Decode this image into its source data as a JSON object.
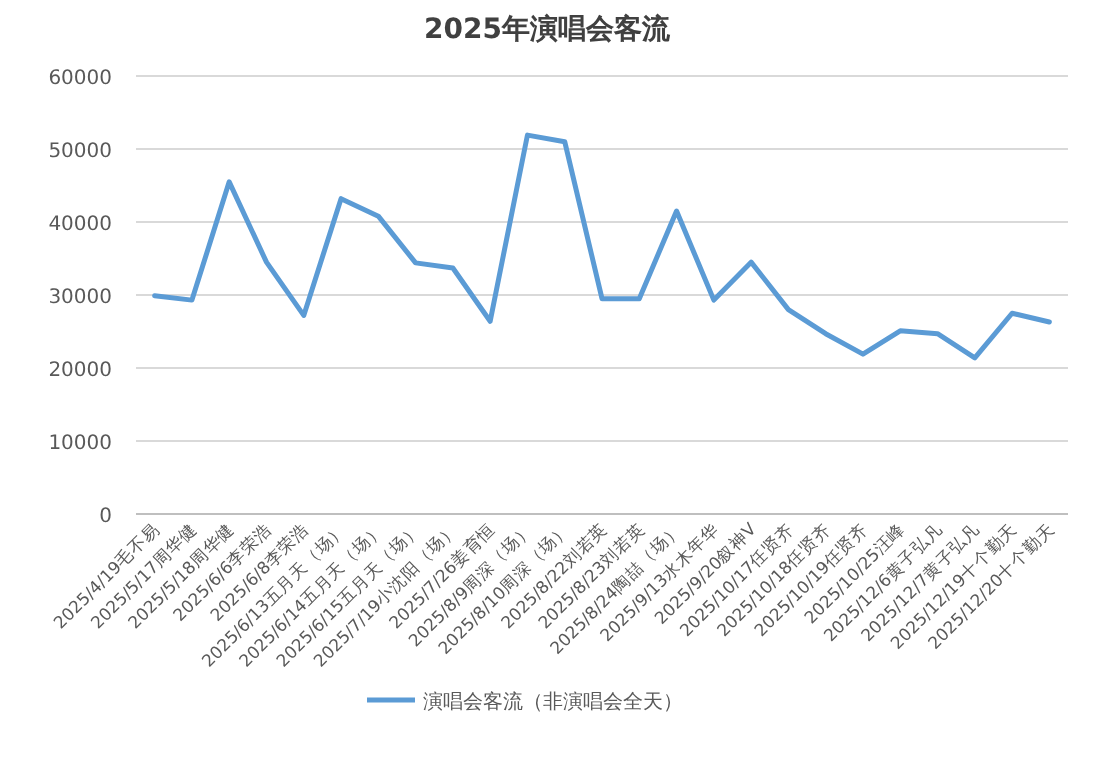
{
  "chart_data": {
    "type": "line",
    "title": "2025年演唱会客流",
    "categories": [
      "2025/4/19毛不易",
      "2025/5/17周华健",
      "2025/5/18周华健",
      "2025/6/6李荣浩",
      "2025/6/8李荣浩",
      "2025/6/13五月天（场）",
      "2025/6/14五月天（场）",
      "2025/6/15五月天（场）",
      "2025/7/19小沈阳（场）",
      "2025/7/26姜育恒",
      "2025/8/9周深（场）",
      "2025/8/10周深（场）",
      "2025/8/22刘若英",
      "2025/8/23刘若英",
      "2025/8/24陶喆（场）",
      "2025/9/13水木年华",
      "2025/9/20叙神V",
      "2025/10/17任贤齐",
      "2025/10/18任贤齐",
      "2025/10/19任贤齐",
      "2025/10/25汪峰",
      "2025/12/6黄子弘凡",
      "2025/12/7黄子弘凡",
      "2025/12/19十个勤天",
      "2025/12/20十个勤天"
    ],
    "series": [
      {
        "name": "演唱会客流（非演唱会全天）",
        "color": "#5b9bd5",
        "values": [
          29900,
          29300,
          45500,
          34500,
          27200,
          43200,
          40800,
          34400,
          33700,
          26400,
          51900,
          51000,
          29500,
          29500,
          41500,
          29300,
          34500,
          28000,
          24700,
          21900,
          25100,
          24700,
          21400,
          27500,
          26300
        ]
      }
    ],
    "ylim": [
      0,
      60000
    ],
    "yticks": [
      0,
      10000,
      20000,
      30000,
      40000,
      50000,
      60000
    ],
    "grid": "y",
    "legend": "bottom",
    "marker": "none",
    "line_style": "solid"
  }
}
